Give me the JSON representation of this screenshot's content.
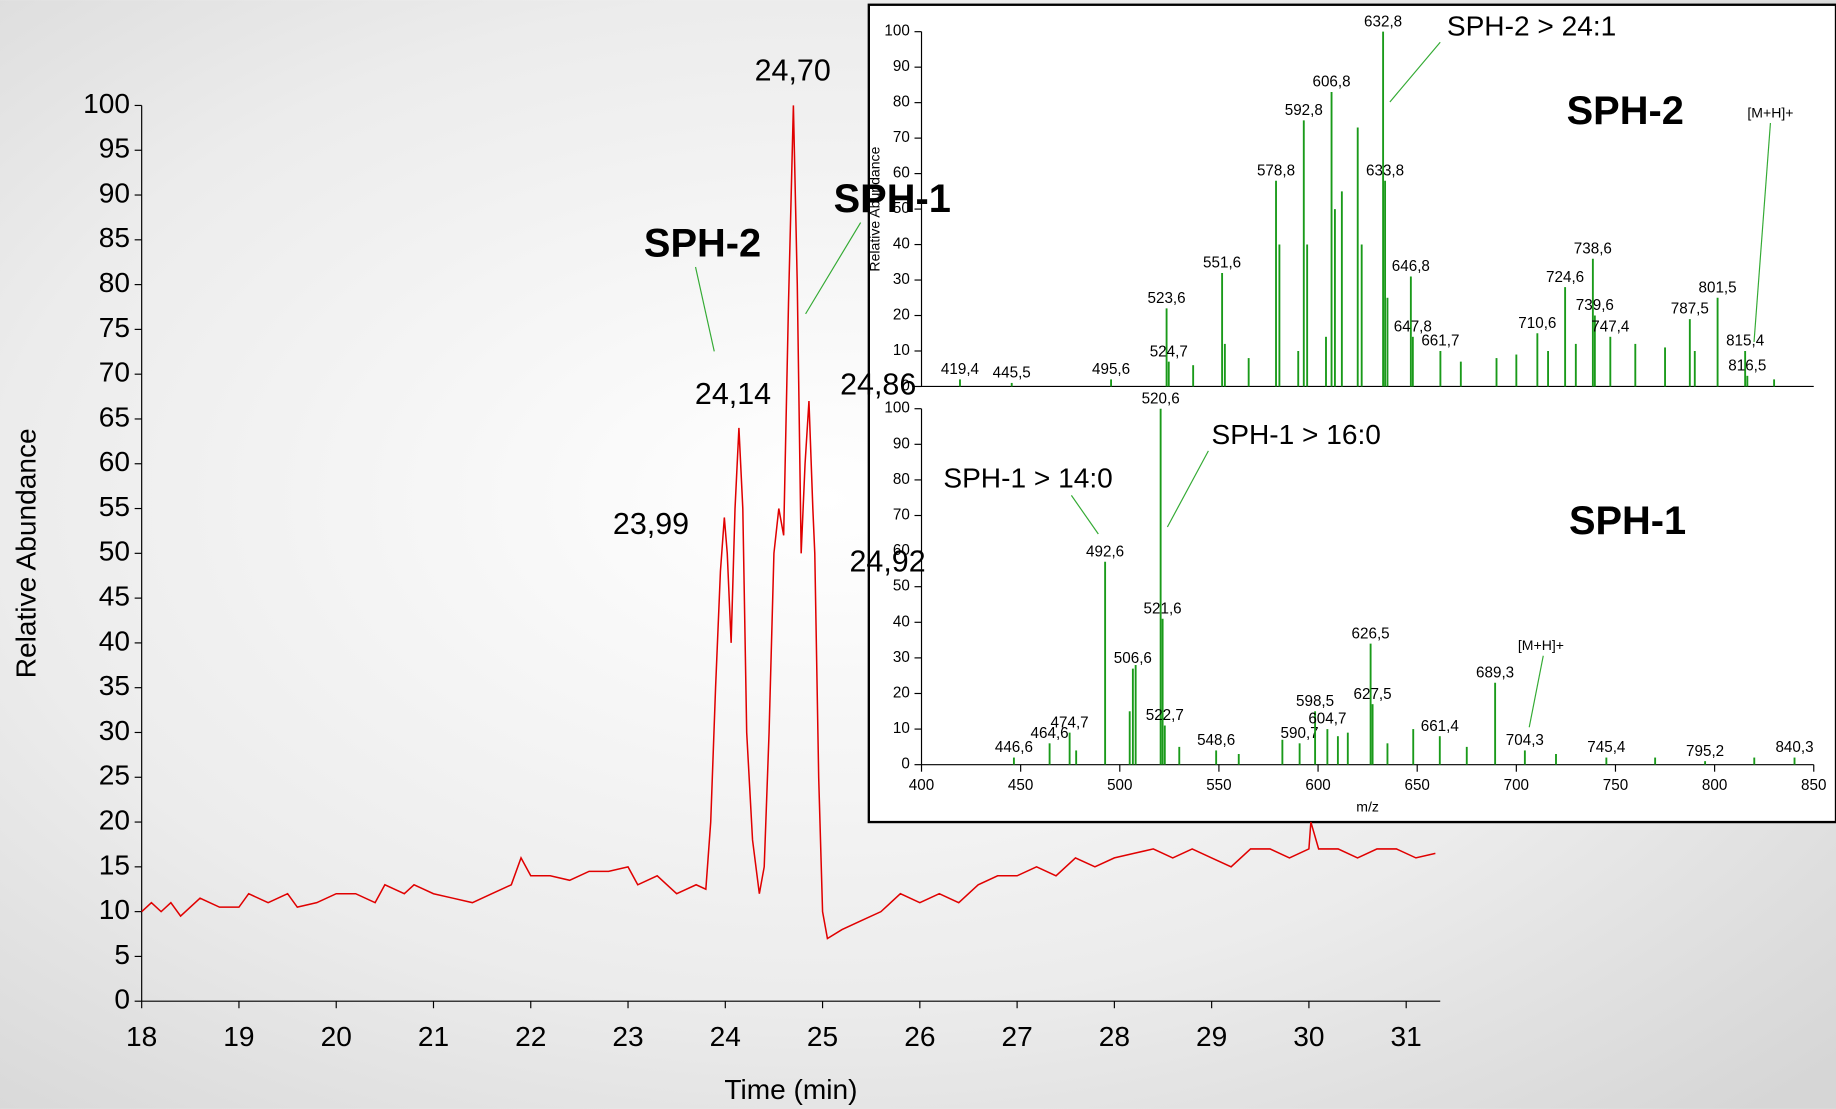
{
  "chart_data": [
    {
      "type": "line",
      "xlabel": "Time (min)",
      "ylabel": "Relative Abundance",
      "xlim": [
        18,
        31.35
      ],
      "xticks": [
        18,
        19,
        20,
        21,
        22,
        23,
        24,
        25,
        26,
        27,
        28,
        29,
        30,
        31
      ],
      "ylim": [
        0,
        100
      ],
      "yticks": [
        0,
        5,
        10,
        15,
        20,
        25,
        30,
        35,
        40,
        45,
        50,
        55,
        60,
        65,
        70,
        75,
        80,
        85,
        90,
        95,
        100
      ],
      "series": [
        {
          "color": "#e00000",
          "x": [
            18,
            18.1,
            18.2,
            18.3,
            18.4,
            18.6,
            18.8,
            19,
            19.1,
            19.3,
            19.5,
            19.6,
            19.8,
            20,
            20.2,
            20.4,
            20.5,
            20.7,
            20.8,
            21,
            21.2,
            21.4,
            21.6,
            21.8,
            21.9,
            22,
            22.2,
            22.4,
            22.6,
            22.8,
            23,
            23.1,
            23.3,
            23.5,
            23.7,
            23.8,
            23.85,
            23.9,
            23.95,
            23.99,
            24.02,
            24.06,
            24.1,
            24.14,
            24.18,
            24.22,
            24.28,
            24.35,
            24.4,
            24.45,
            24.5,
            24.55,
            24.6,
            24.65,
            24.7,
            24.74,
            24.78,
            24.82,
            24.86,
            24.9,
            24.92,
            24.96,
            25,
            25.05,
            25.2,
            25.4,
            25.6,
            25.8,
            26,
            26.2,
            26.4,
            26.6,
            26.8,
            27,
            27.2,
            27.4,
            27.6,
            27.8,
            28,
            28.2,
            28.4,
            28.6,
            28.8,
            29,
            29.2,
            29.4,
            29.6,
            29.8,
            30,
            30.02,
            30.1,
            30.3,
            30.5,
            30.7,
            30.9,
            31.1,
            31.3
          ],
          "values": [
            10,
            11,
            10,
            11,
            9.5,
            11.5,
            10.5,
            10.5,
            12,
            11,
            12,
            10.5,
            11,
            12,
            12,
            11,
            13,
            12,
            13,
            12,
            11.5,
            11,
            12,
            13,
            16,
            14,
            14,
            13.5,
            14.5,
            14.5,
            15,
            13,
            14,
            12,
            13,
            12.5,
            20,
            35,
            48,
            54,
            50,
            40,
            55,
            64,
            55,
            30,
            18,
            12,
            15,
            30,
            50,
            55,
            52,
            78,
            100,
            80,
            50,
            60,
            67,
            55,
            50,
            25,
            10,
            7,
            8,
            9,
            10,
            12,
            11,
            12,
            11,
            13,
            14,
            14,
            15,
            14,
            16,
            15,
            16,
            16.5,
            17,
            16,
            17,
            16,
            15,
            17,
            17,
            16,
            17,
            20,
            17,
            17,
            16,
            17,
            17,
            16,
            16.5
          ]
        }
      ],
      "peak_labels": [
        {
          "x": 24.7,
          "label": "24,70"
        },
        {
          "x": 24.14,
          "label": "24,14"
        },
        {
          "x": 24.86,
          "label": "24,86"
        },
        {
          "x": 23.99,
          "label": "23,99"
        },
        {
          "x": 24.92,
          "label": "24,92"
        }
      ],
      "annotations": [
        "SPH-2",
        "SPH-1"
      ]
    },
    {
      "type": "stick",
      "ylabel": "Relative Abundance",
      "xlim": [
        400,
        850
      ],
      "ylim": [
        0,
        100
      ],
      "yticks": [
        0,
        10,
        20,
        30,
        40,
        50,
        60,
        70,
        80,
        90,
        100
      ],
      "series": [
        {
          "color": "#1a9a1a",
          "x": [
            419.4,
            445.5,
            495.6,
            523.6,
            524.7,
            537,
            551.6,
            553,
            565,
            578.8,
            580.5,
            590,
            592.8,
            594.5,
            604,
            606.8,
            608.5,
            612,
            620,
            622,
            632.8,
            633.8,
            635,
            646.8,
            647.8,
            661.7,
            672,
            690,
            700,
            710.6,
            716,
            724.6,
            730,
            738.6,
            739.6,
            747.4,
            760,
            775,
            787.5,
            790,
            801.5,
            815.4,
            816.5,
            830
          ],
          "values": [
            2,
            1,
            2,
            22,
            7,
            6,
            32,
            12,
            8,
            58,
            40,
            10,
            75,
            40,
            14,
            83,
            50,
            55,
            73,
            40,
            100,
            58,
            25,
            31,
            14,
            10,
            7,
            8,
            9,
            15,
            10,
            28,
            12,
            36,
            20,
            14,
            12,
            11,
            19,
            10,
            25,
            10,
            3,
            2
          ],
          "x_labels": [
            "419,4",
            "445,5",
            "495,6",
            "523,6",
            "524,7",
            null,
            "551,6",
            null,
            null,
            "578,8",
            null,
            null,
            "592,8",
            null,
            null,
            "606,8",
            null,
            null,
            null,
            null,
            "632,8",
            "633,8",
            null,
            "646,8",
            "647,8",
            "661,7",
            null,
            null,
            null,
            "710,6",
            null,
            "724,6",
            null,
            "738,6",
            "739,6",
            "747,4",
            null,
            null,
            "787,5",
            null,
            "801,5",
            "815,4",
            "816,5",
            null
          ]
        }
      ],
      "annotations": [
        "SPH-2 > 24:1",
        "SPH-2",
        "[M+H]+"
      ]
    },
    {
      "type": "stick",
      "xlabel": "m/z",
      "xlim": [
        400,
        850
      ],
      "xticks": [
        400,
        450,
        500,
        550,
        600,
        650,
        700,
        750,
        800,
        850
      ],
      "ylim": [
        0,
        100
      ],
      "yticks": [
        0,
        10,
        20,
        30,
        40,
        50,
        60,
        70,
        80,
        90,
        100
      ],
      "series": [
        {
          "color": "#1a9a1a",
          "x": [
            446.6,
            464.6,
            474.7,
            478,
            492.6,
            505,
            506.6,
            508,
            520.6,
            521.6,
            522.7,
            530,
            548.6,
            560,
            582,
            590.7,
            598.5,
            604.7,
            610,
            615,
            626.5,
            627.5,
            635,
            648,
            661.4,
            675,
            689.3,
            704.3,
            720,
            745.4,
            770,
            795.2,
            820,
            840.3
          ],
          "values": [
            2,
            6,
            9,
            4,
            57,
            15,
            27,
            28,
            100,
            41,
            11,
            5,
            4,
            3,
            7,
            6,
            15,
            10,
            8,
            9,
            34,
            17,
            6,
            10,
            8,
            5,
            23,
            4,
            3,
            2,
            2,
            1,
            2,
            2
          ],
          "x_labels": [
            "446,6",
            "464,6",
            "474,7",
            null,
            "492,6",
            null,
            "506,6",
            null,
            "520,6",
            "521,6",
            "522,7",
            null,
            "548,6",
            null,
            null,
            "590,7",
            "598,5",
            "604,7",
            null,
            null,
            "626,5",
            "627,5",
            null,
            null,
            "661,4",
            null,
            "689,3",
            "704,3",
            null,
            "745,4",
            null,
            "795,2",
            null,
            "840,3"
          ]
        }
      ],
      "annotations": [
        "SPH-1 > 14:0",
        "SPH-1 > 16:0",
        "SPH-1",
        "[M+H]+"
      ]
    }
  ]
}
